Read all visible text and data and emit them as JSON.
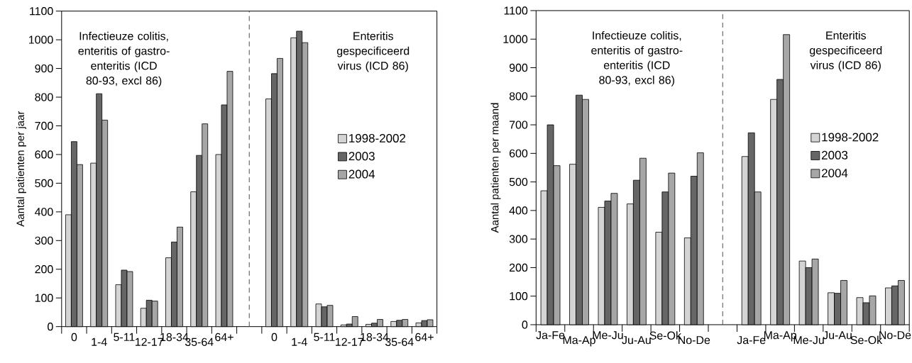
{
  "chart_data": [
    {
      "type": "bar",
      "ylabel": "Aantal patienten per jaar",
      "categories": [
        "0",
        "1-4",
        "5-11",
        "12-17",
        "18-34",
        "35-64",
        "64+",
        null,
        "0",
        "1-4",
        "5-11",
        "12-17",
        "18-34",
        "35-64",
        "64+"
      ],
      "series": [
        {
          "name": "1998-2002",
          "color": "#d4d4d4",
          "values": [
            390,
            570,
            146,
            64,
            240,
            470,
            600,
            null,
            794,
            1007,
            79,
            6,
            8,
            18,
            13
          ]
        },
        {
          "name": "2003",
          "color": "#666666",
          "values": [
            645,
            812,
            197,
            92,
            295,
            597,
            773,
            null,
            882,
            1030,
            69,
            9,
            12,
            22,
            21
          ]
        },
        {
          "name": "2004",
          "color": "#a6a6a6",
          "values": [
            565,
            720,
            192,
            89,
            347,
            707,
            890,
            null,
            935,
            990,
            74,
            35,
            25,
            25,
            24
          ]
        }
      ],
      "ylim": [
        0,
        1100
      ],
      "yticks": [
        0,
        100,
        200,
        300,
        400,
        500,
        600,
        700,
        800,
        900,
        1000,
        1100
      ],
      "annotations": [
        "Infectieuze colitis, enteritis of gastro-enteritis (ICD 80-93, excl 86)",
        "Enteritis gespecificeerd virus (ICD 86)"
      ],
      "legend": "right"
    },
    {
      "type": "bar",
      "ylabel": "Aantal patienten per maand",
      "categories": [
        "Ja-Fe",
        "Ma-Ap",
        "Me-Ju",
        "Ju-Au",
        "Se-Ok",
        "No-De",
        null,
        "Ja-Fe",
        "Ma-Ap",
        "Me-Ju",
        "Ju-Au",
        "Se-Ok",
        "No-De"
      ],
      "series": [
        {
          "name": "1998-2002",
          "color": "#d4d4d4",
          "values": [
            469,
            562,
            411,
            423,
            324,
            304,
            null,
            589,
            789,
            223,
            112,
            95,
            129
          ]
        },
        {
          "name": "2003",
          "color": "#666666",
          "values": [
            700,
            804,
            433,
            506,
            465,
            520,
            null,
            672,
            859,
            200,
            110,
            77,
            136
          ]
        },
        {
          "name": "2004",
          "color": "#a6a6a6",
          "values": [
            557,
            789,
            460,
            583,
            531,
            602,
            null,
            465,
            1016,
            230,
            155,
            101,
            155
          ]
        }
      ],
      "ylim": [
        0,
        1100
      ],
      "yticks": [
        0,
        100,
        200,
        300,
        400,
        500,
        600,
        700,
        800,
        900,
        1000,
        1100
      ],
      "annotations": [
        "Infectieuze colitis, enteritis of gastro-enteritis (ICD 80-93, excl 86)",
        "Enteritis gespecificeerd virus (ICD 86)"
      ],
      "legend": "right"
    }
  ]
}
